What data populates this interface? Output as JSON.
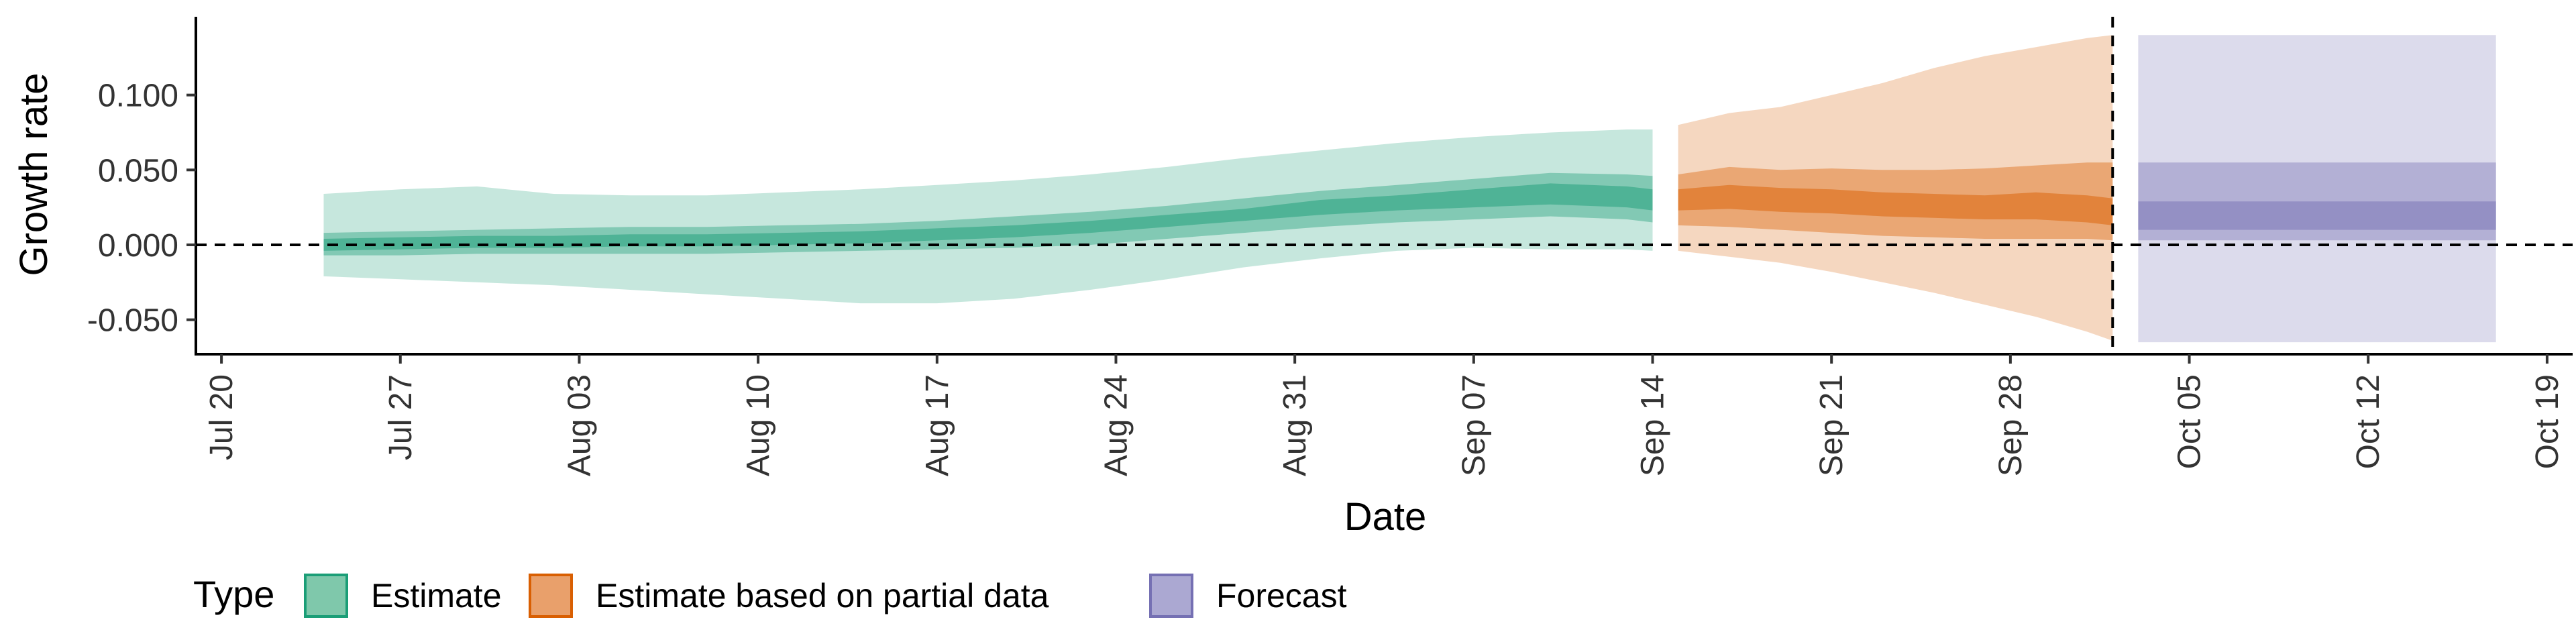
{
  "chart_data": {
    "type": "area",
    "xlabel": "Date",
    "ylabel": "Growth rate",
    "xlim": [
      "2020-07-19",
      "2020-10-20"
    ],
    "ylim": [
      -0.073,
      0.15
    ],
    "x_ticks": [
      "Jul 20",
      "Jul 27",
      "Aug 03",
      "Aug 10",
      "Aug 17",
      "Aug 24",
      "Aug 31",
      "Sep 07",
      "Sep 14",
      "Sep 21",
      "Sep 28",
      "Oct 05",
      "Oct 12",
      "Oct 19"
    ],
    "x_tick_dates": [
      "2020-07-20",
      "2020-07-27",
      "2020-08-03",
      "2020-08-10",
      "2020-08-17",
      "2020-08-24",
      "2020-08-31",
      "2020-09-07",
      "2020-09-14",
      "2020-09-21",
      "2020-09-28",
      "2020-10-05",
      "2020-10-12",
      "2020-10-19"
    ],
    "y_ticks": [
      "-0.050",
      "0.000",
      "0.050",
      "0.100"
    ],
    "y_tick_values": [
      -0.05,
      0.0,
      0.05,
      0.1
    ],
    "hlines": [
      0
    ],
    "vlines": [
      "2020-10-02"
    ],
    "legend": {
      "title": "Type",
      "position": "bottom",
      "entries": [
        {
          "label": "Estimate",
          "fill": "#7fc8ab",
          "stroke": "#1b9e77"
        },
        {
          "label": "Estimate based on partial data",
          "fill": "#e9a06b",
          "stroke": "#d95f02"
        },
        {
          "label": "Forecast",
          "fill": "#aba8d2",
          "stroke": "#7570b3"
        }
      ]
    },
    "series": [
      {
        "name": "Estimate",
        "color": "#1b9e77",
        "x": [
          "2020-07-24",
          "2020-07-27",
          "2020-07-30",
          "2020-08-02",
          "2020-08-05",
          "2020-08-08",
          "2020-08-11",
          "2020-08-14",
          "2020-08-17",
          "2020-08-20",
          "2020-08-23",
          "2020-08-26",
          "2020-08-29",
          "2020-09-01",
          "2020-09-04",
          "2020-09-07",
          "2020-09-10",
          "2020-09-13",
          "2020-09-14"
        ],
        "median": [
          0.0,
          0.001,
          0.002,
          0.002,
          0.003,
          0.003,
          0.004,
          0.005,
          0.007,
          0.009,
          0.012,
          0.016,
          0.02,
          0.025,
          0.028,
          0.031,
          0.034,
          0.032,
          0.03
        ],
        "lower_20": [
          -0.004,
          -0.003,
          -0.002,
          -0.002,
          -0.001,
          -0.001,
          0.0,
          0.001,
          0.003,
          0.005,
          0.008,
          0.012,
          0.016,
          0.02,
          0.023,
          0.025,
          0.027,
          0.025,
          0.023
        ],
        "upper_20": [
          0.004,
          0.005,
          0.006,
          0.006,
          0.007,
          0.007,
          0.008,
          0.009,
          0.011,
          0.013,
          0.016,
          0.02,
          0.024,
          0.03,
          0.033,
          0.037,
          0.041,
          0.039,
          0.037
        ],
        "lower_50": [
          -0.007,
          -0.007,
          -0.006,
          -0.006,
          -0.006,
          -0.006,
          -0.005,
          -0.004,
          -0.003,
          -0.002,
          0.0,
          0.004,
          0.008,
          0.012,
          0.015,
          0.017,
          0.019,
          0.017,
          0.015
        ],
        "upper_50": [
          0.008,
          0.009,
          0.01,
          0.011,
          0.012,
          0.012,
          0.013,
          0.014,
          0.016,
          0.019,
          0.022,
          0.026,
          0.031,
          0.036,
          0.04,
          0.044,
          0.048,
          0.047,
          0.046
        ],
        "lower_90": [
          -0.021,
          -0.023,
          -0.025,
          -0.027,
          -0.03,
          -0.033,
          -0.036,
          -0.039,
          -0.039,
          -0.036,
          -0.03,
          -0.023,
          -0.015,
          -0.009,
          -0.004,
          -0.002,
          -0.003,
          -0.003,
          -0.004
        ],
        "upper_90": [
          0.034,
          0.037,
          0.039,
          0.034,
          0.033,
          0.033,
          0.035,
          0.037,
          0.04,
          0.043,
          0.047,
          0.052,
          0.058,
          0.063,
          0.068,
          0.072,
          0.075,
          0.077,
          0.077
        ]
      },
      {
        "name": "Estimate based on partial data",
        "color": "#d95f02",
        "x": [
          "2020-09-15",
          "2020-09-17",
          "2020-09-19",
          "2020-09-21",
          "2020-09-23",
          "2020-09-25",
          "2020-09-27",
          "2020-09-29",
          "2020-10-01",
          "2020-10-02"
        ],
        "median": [
          0.03,
          0.032,
          0.03,
          0.029,
          0.027,
          0.026,
          0.025,
          0.026,
          0.024,
          0.022
        ],
        "lower_20": [
          0.023,
          0.024,
          0.022,
          0.021,
          0.019,
          0.018,
          0.017,
          0.017,
          0.015,
          0.013
        ],
        "upper_20": [
          0.037,
          0.04,
          0.038,
          0.037,
          0.035,
          0.034,
          0.033,
          0.035,
          0.033,
          0.031
        ],
        "lower_50": [
          0.013,
          0.012,
          0.01,
          0.008,
          0.006,
          0.005,
          0.004,
          0.004,
          0.004,
          0.003
        ],
        "upper_50": [
          0.047,
          0.052,
          0.05,
          0.051,
          0.05,
          0.05,
          0.051,
          0.053,
          0.055,
          0.055
        ],
        "lower_90": [
          -0.004,
          -0.008,
          -0.012,
          -0.018,
          -0.025,
          -0.032,
          -0.04,
          -0.048,
          -0.058,
          -0.064
        ],
        "upper_90": [
          0.08,
          0.088,
          0.092,
          0.1,
          0.108,
          0.118,
          0.126,
          0.132,
          0.138,
          0.14
        ]
      },
      {
        "name": "Forecast",
        "color": "#7570b3",
        "x": [
          "2020-10-03",
          "2020-10-17"
        ],
        "median": [
          0.027,
          0.027
        ],
        "lower_20": [
          0.01,
          0.01
        ],
        "upper_20": [
          0.029,
          0.029
        ],
        "lower_50": [
          0.003,
          0.003
        ],
        "upper_50": [
          0.055,
          0.055
        ],
        "lower_90": [
          -0.065,
          -0.065
        ],
        "upper_90": [
          0.14,
          0.14
        ]
      }
    ]
  }
}
